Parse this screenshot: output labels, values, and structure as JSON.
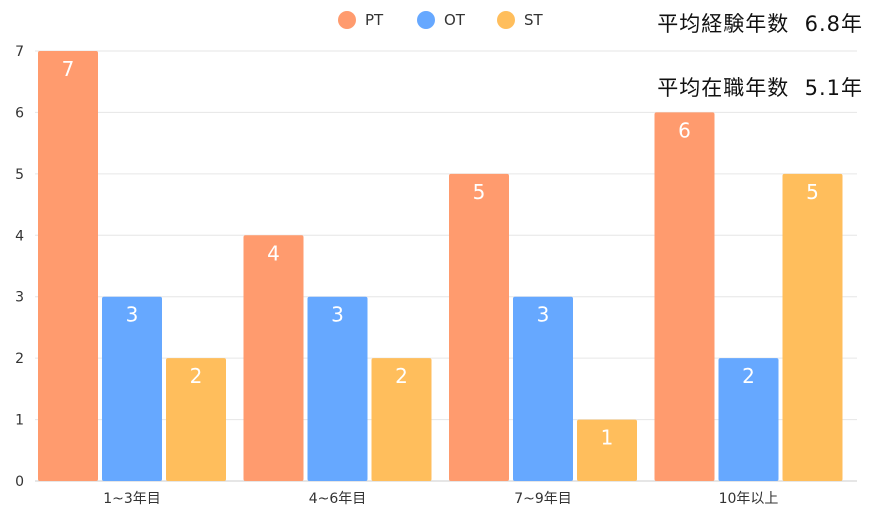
{
  "stats": [
    {
      "label": "平均経験年数",
      "value": "6.8年"
    },
    {
      "label": "平均在職年数",
      "value": "5.1年"
    }
  ],
  "chart_data": {
    "type": "bar",
    "categories": [
      "1~3年目",
      "4~6年目",
      "7~9年目",
      "10年以上"
    ],
    "series": [
      {
        "name": "PT",
        "color": "#FF9B6E",
        "values": [
          7,
          4,
          5,
          6
        ]
      },
      {
        "name": "OT",
        "color": "#66A8FF",
        "values": [
          3,
          3,
          3,
          2
        ]
      },
      {
        "name": "ST",
        "color": "#FFBE5C",
        "values": [
          2,
          2,
          1,
          5
        ]
      }
    ],
    "ylim": [
      0,
      7
    ],
    "yticks": [
      0,
      1,
      2,
      3,
      4,
      5,
      6,
      7
    ],
    "grid": true,
    "legend": "top-center",
    "data_labels": true
  }
}
